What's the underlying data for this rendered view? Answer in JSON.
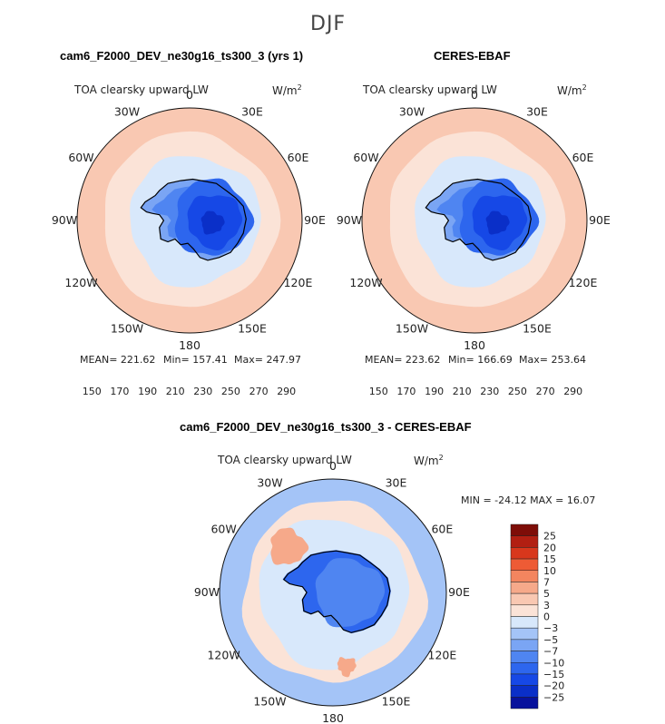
{
  "title": "DJF",
  "panels": [
    {
      "heading": "cam6_F2000_DEV_ne30g16_ts300_3 (yrs 1)",
      "variable": "TOA clearsky upward LW",
      "units": "W/m",
      "units_sup": "2",
      "stats": {
        "mean": "MEAN= 221.62",
        "min": "Min= 157.41",
        "max": "Max= 247.97"
      },
      "colorbar_ticks": [
        "150",
        "170",
        "190",
        "210",
        "230",
        "250",
        "270",
        "290"
      ]
    },
    {
      "heading": "CERES-EBAF",
      "variable": "TOA clearsky upward LW",
      "units": "W/m",
      "units_sup": "2",
      "stats": {
        "mean": "MEAN= 223.62",
        "min": "Min= 166.69",
        "max": "Max= 253.64"
      },
      "colorbar_ticks": [
        "150",
        "170",
        "190",
        "210",
        "230",
        "250",
        "270",
        "290"
      ]
    },
    {
      "heading": "cam6_F2000_DEV_ne30g16_ts300_3 - CERES-EBAF",
      "variable": "TOA clearsky upward LW",
      "units": "W/m",
      "units_sup": "2",
      "minmax": "MIN = -24.12 MAX =  16.07",
      "colorbar_ticks": [
        "25",
        "20",
        "15",
        "10",
        "7",
        "5",
        "3",
        "0",
        "−3",
        "−5",
        "−7",
        "−10",
        "−15",
        "−20",
        "−25"
      ]
    }
  ],
  "longitude_labels": [
    "0",
    "30E",
    "60E",
    "90E",
    "120E",
    "150E",
    "180",
    "150W",
    "120W",
    "90W",
    "60W",
    "30W"
  ],
  "colors": {
    "abs_scale": [
      "#08129c",
      "#0a2fc8",
      "#1648e6",
      "#2d66ee",
      "#4f85f1",
      "#7aa5f4",
      "#a4c4f7",
      "#d8e8fb",
      "#fbe3d7",
      "#f9c8b2",
      "#f6a98a",
      "#f3855f",
      "#ee5b35",
      "#d8371c",
      "#b21f12",
      "#7e0d08"
    ],
    "diff_scale": [
      "#7e0d08",
      "#b21f12",
      "#d8371c",
      "#ee5b35",
      "#f3855f",
      "#f6a98a",
      "#f9c8b2",
      "#fbe3d7",
      "#d8e8fb",
      "#a4c4f7",
      "#7aa5f4",
      "#4f85f1",
      "#2d66ee",
      "#1648e6",
      "#0a2fc8",
      "#08129c"
    ]
  },
  "chart_data": [
    {
      "type": "heatmap",
      "projection": "south-polar-stereographic",
      "title": "cam6_F2000_DEV_ne30g16_ts300_3 (yrs 1)",
      "variable": "TOA clearsky upward LW",
      "units": "W/m^2",
      "mean": 221.62,
      "min": 157.41,
      "max": 247.97,
      "levels": [
        150,
        155,
        160,
        165,
        170,
        175,
        180,
        185,
        190,
        195,
        200,
        205,
        210,
        215,
        220,
        225,
        230,
        235,
        240,
        245,
        250,
        255,
        260,
        265,
        270,
        275,
        280,
        285,
        290
      ]
    },
    {
      "type": "heatmap",
      "projection": "south-polar-stereographic",
      "title": "CERES-EBAF",
      "variable": "TOA clearsky upward LW",
      "units": "W/m^2",
      "mean": 223.62,
      "min": 166.69,
      "max": 253.64,
      "levels": [
        150,
        155,
        160,
        165,
        170,
        175,
        180,
        185,
        190,
        195,
        200,
        205,
        210,
        215,
        220,
        225,
        230,
        235,
        240,
        245,
        250,
        255,
        260,
        265,
        270,
        275,
        280,
        285,
        290
      ]
    },
    {
      "type": "heatmap",
      "projection": "south-polar-stereographic",
      "title": "cam6_F2000_DEV_ne30g16_ts300_3 - CERES-EBAF",
      "variable": "TOA clearsky upward LW",
      "units": "W/m^2",
      "min": -24.12,
      "max": 16.07,
      "levels": [
        -25,
        -20,
        -15,
        -10,
        -7,
        -5,
        -3,
        0,
        3,
        5,
        7,
        10,
        15,
        20,
        25
      ]
    }
  ]
}
